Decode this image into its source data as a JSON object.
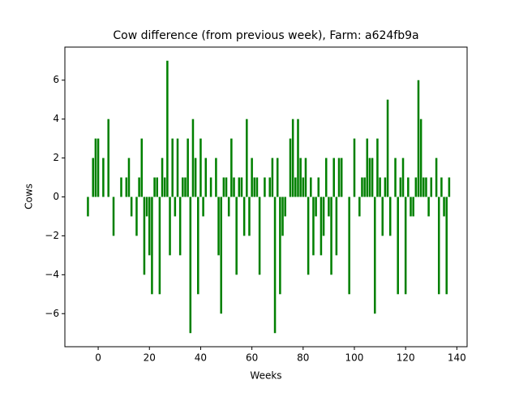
{
  "chart_data": {
    "type": "bar",
    "title": "Cow difference (from previous week), Farm: a624fb9a",
    "xlabel": "Weeks",
    "ylabel": "Cows",
    "color": "#008000",
    "x": [
      -4,
      -2,
      -1,
      0,
      2,
      4,
      6,
      9,
      11,
      12,
      13,
      15,
      16,
      17,
      18,
      19,
      20,
      21,
      22,
      23,
      24,
      25,
      26,
      27,
      28,
      29,
      30,
      31,
      32,
      33,
      34,
      35,
      36,
      37,
      38,
      39,
      40,
      41,
      42,
      44,
      46,
      47,
      48,
      49,
      50,
      51,
      52,
      53,
      54,
      55,
      56,
      57,
      58,
      59,
      60,
      61,
      62,
      63,
      65,
      67,
      68,
      69,
      70,
      71,
      72,
      73,
      75,
      76,
      77,
      78,
      79,
      80,
      81,
      82,
      83,
      84,
      85,
      86,
      87,
      88,
      89,
      90,
      91,
      92,
      93,
      94,
      95,
      98,
      100,
      102,
      103,
      104,
      105,
      106,
      107,
      108,
      109,
      110,
      111,
      112,
      113,
      114,
      116,
      117,
      118,
      119,
      120,
      121,
      122,
      123,
      124,
      125,
      126,
      127,
      128,
      129,
      130,
      132,
      133,
      134,
      135,
      136,
      137
    ],
    "values": [
      -1,
      2,
      3,
      3,
      2,
      4,
      -2,
      1,
      1,
      2,
      -1,
      -2,
      1,
      3,
      -4,
      -1,
      -3,
      -5,
      1,
      1,
      -5,
      2,
      1,
      7,
      -3,
      3,
      -1,
      3,
      -3,
      1,
      1,
      3,
      -7,
      4,
      2,
      -5,
      3,
      -1,
      2,
      1,
      2,
      -3,
      -6,
      1,
      1,
      -1,
      3,
      1,
      -4,
      1,
      1,
      -2,
      4,
      -2,
      2,
      1,
      1,
      -4,
      1,
      1,
      2,
      -7,
      2,
      -5,
      -2,
      -1,
      3,
      4,
      1,
      4,
      2,
      1,
      2,
      -4,
      1,
      -3,
      -1,
      1,
      -3,
      -2,
      2,
      -1,
      -4,
      2,
      -3,
      2,
      2,
      -5,
      3,
      -1,
      1,
      1,
      3,
      2,
      2,
      -6,
      3,
      1,
      -2,
      1,
      5,
      -2,
      2,
      -5,
      1,
      2,
      -5,
      1,
      -1,
      -1,
      1,
      6,
      4,
      1,
      1,
      -1,
      1,
      2,
      -5,
      1,
      -1,
      -5,
      1
    ],
    "xlim": [
      -13,
      144
    ],
    "ylim": [
      -7.7,
      7.7
    ],
    "xticks": [
      0,
      20,
      40,
      60,
      80,
      100,
      120,
      140
    ],
    "yticks": [
      {
        "value": -6,
        "label": "−6"
      },
      {
        "value": -4,
        "label": "−4"
      },
      {
        "value": -2,
        "label": "−2"
      },
      0,
      2,
      4,
      6
    ]
  }
}
